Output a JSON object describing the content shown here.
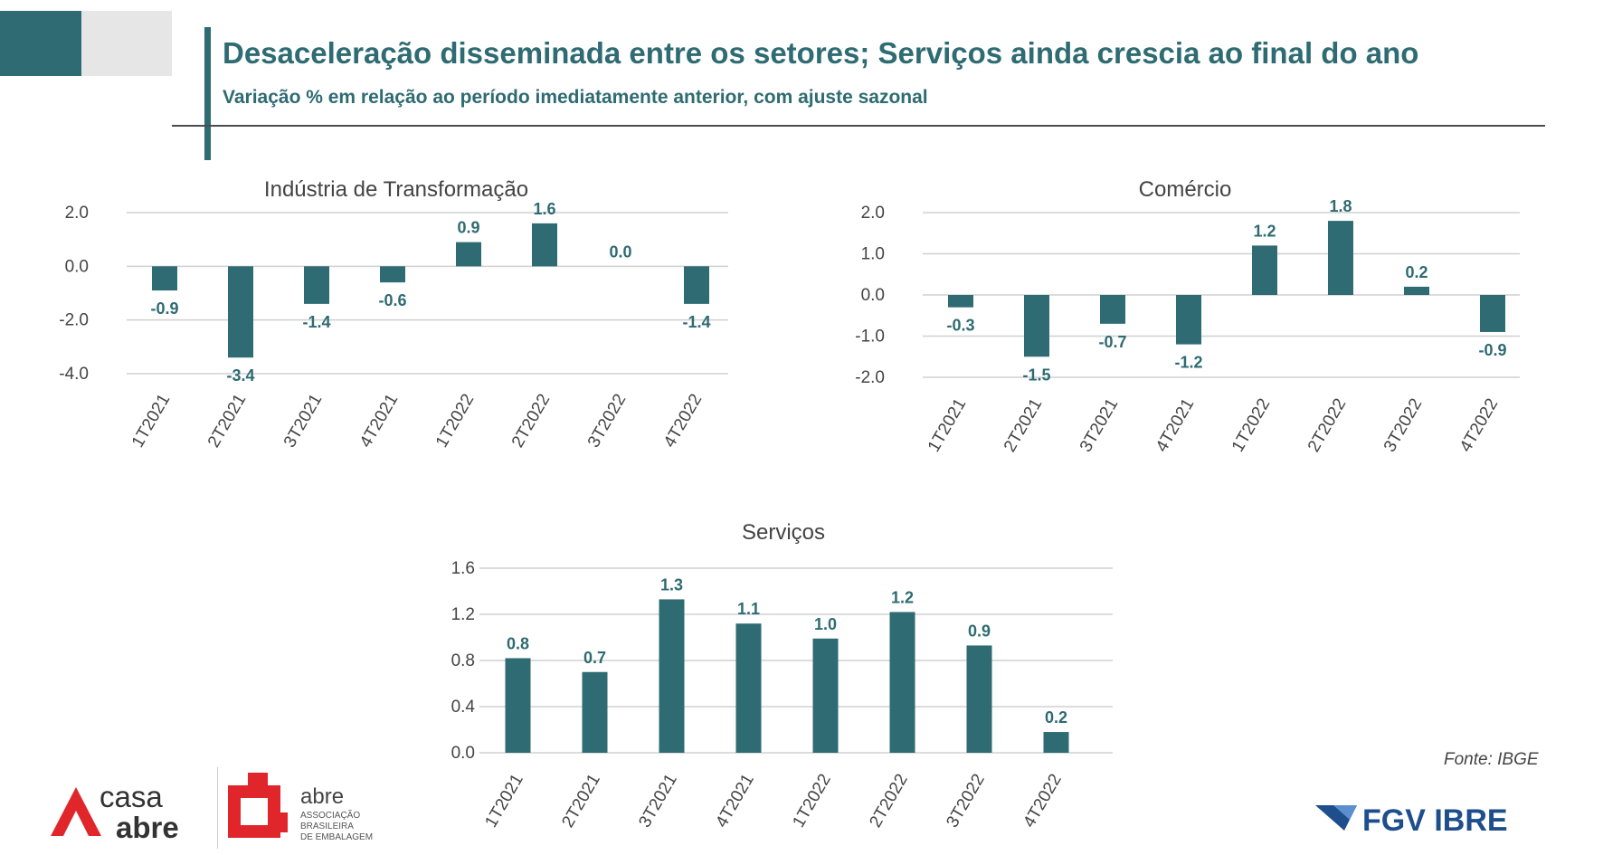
{
  "header": {
    "title": "Desaceleração disseminada entre os setores; Serviços ainda crescia ao final do ano",
    "subtitle": "Variação % em relação ao período imediatamente anterior, com ajuste sazonal"
  },
  "source": "Fonte: IBGE",
  "logos": {
    "casa_line1": "casa",
    "casa_line2": "abre",
    "abre_name": "abre",
    "abre_tag": [
      "ASSOCIAÇÃO",
      "BRASILEIRA",
      "DE EMBALAGEM"
    ],
    "fgv": "FGV IBRE"
  },
  "colors": {
    "accent": "#2e6b72",
    "grid": "#d0d0d0",
    "text": "#444444"
  },
  "chart_data": [
    {
      "type": "bar",
      "title": "Indústria de Transformação",
      "categories": [
        "1T2021",
        "2T2021",
        "3T2021",
        "4T2021",
        "1T2022",
        "2T2022",
        "3T2022",
        "4T2022"
      ],
      "values": [
        -0.9,
        -3.4,
        -1.4,
        -0.6,
        0.9,
        1.6,
        0.0,
        -1.4
      ],
      "labels": [
        "-0.9",
        "-3.4",
        "-1.4",
        "-0.6",
        "0.9",
        "1.6",
        "0.0",
        "-1.4"
      ],
      "ylim": [
        -4.0,
        2.0
      ],
      "yticks": [
        2.0,
        0.0,
        -2.0,
        -4.0
      ],
      "ytick_labels": [
        "2.0",
        "0.0",
        "-2.0",
        "-4.0"
      ],
      "xlabel": "",
      "ylabel": "",
      "grid": true
    },
    {
      "type": "bar",
      "title": "Comércio",
      "categories": [
        "1T2021",
        "2T2021",
        "3T2021",
        "4T2021",
        "1T2022",
        "2T2022",
        "3T2022",
        "4T2022"
      ],
      "values": [
        -0.3,
        -1.5,
        -0.7,
        -1.2,
        1.2,
        1.8,
        0.2,
        -0.9
      ],
      "labels": [
        "-0.3",
        "-1.5",
        "-0.7",
        "-1.2",
        "1.2",
        "1.8",
        "0.2",
        "-0.9"
      ],
      "ylim": [
        -2.0,
        2.0
      ],
      "yticks": [
        2.0,
        1.0,
        0.0,
        -1.0,
        -2.0
      ],
      "ytick_labels": [
        "2.0",
        "1.0",
        "0.0",
        "-1.0",
        "-2.0"
      ],
      "xlabel": "",
      "ylabel": "",
      "grid": true
    },
    {
      "type": "bar",
      "title": "Serviços",
      "categories": [
        "1T2021",
        "2T2021",
        "3T2021",
        "4T2021",
        "1T2022",
        "2T2022",
        "3T2022",
        "4T2022"
      ],
      "values": [
        0.82,
        0.7,
        1.33,
        1.12,
        0.99,
        1.22,
        0.93,
        0.18
      ],
      "labels": [
        "0.8",
        "0.7",
        "1.3",
        "1.1",
        "1.0",
        "1.2",
        "0.9",
        "0.2"
      ],
      "ylim": [
        0.0,
        1.6
      ],
      "yticks": [
        1.6,
        1.2,
        0.8,
        0.4,
        0.0
      ],
      "ytick_labels": [
        "1.6",
        "1.2",
        "0.8",
        "0.4",
        "0.0"
      ],
      "xlabel": "",
      "ylabel": "",
      "grid": true
    }
  ]
}
